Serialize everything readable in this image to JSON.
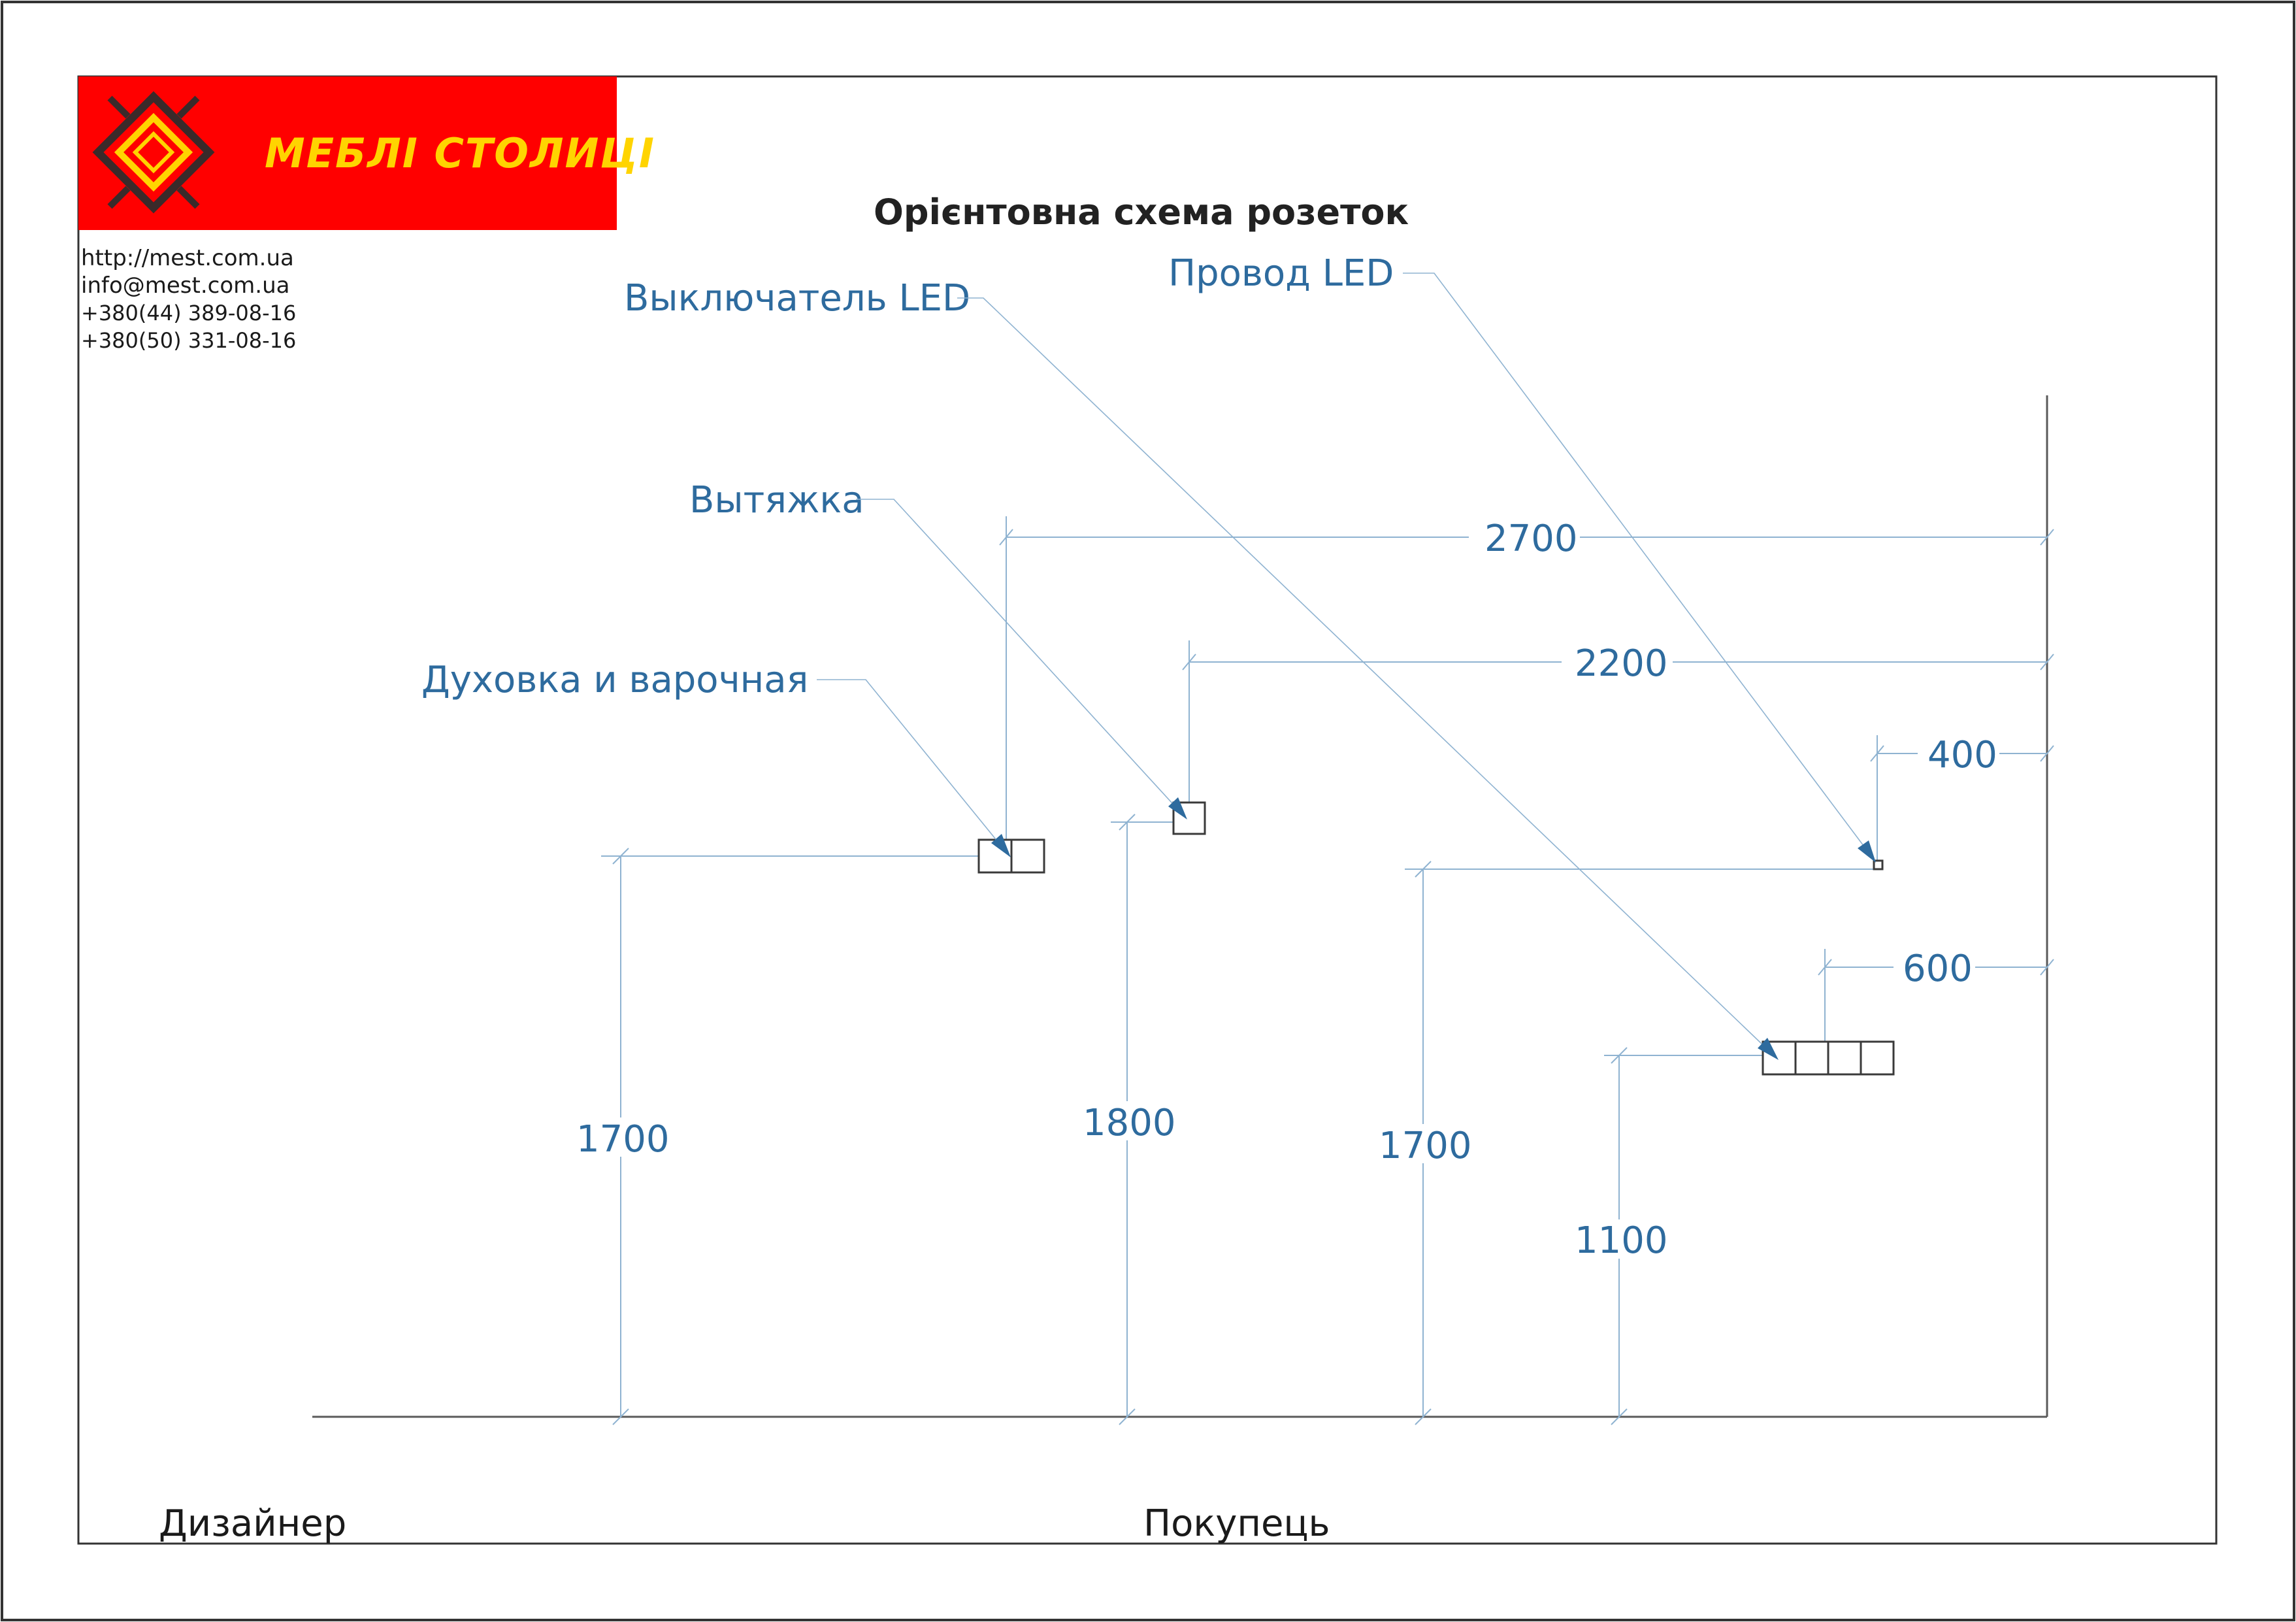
{
  "logo": {
    "brand": "МЕБЛІ СТОЛИЦІ",
    "background_color": "#ff0000",
    "text_color": "#ffd400"
  },
  "contacts": [
    "http://mest.com.ua",
    "info@mest.com.ua",
    "+380(44)   389-08-16",
    "+380(50)   331-08-16"
  ],
  "title": "Орієнтовна схема розеток",
  "callouts": {
    "switch_led": "Выключатель LED",
    "wire_led": "Провод LED",
    "hood": "Вытяжка",
    "oven_hob": "Духовка и варочная"
  },
  "dimensions": {
    "top_2700": "2700",
    "top_2200": "2200",
    "right_400": "400",
    "right_600": "600",
    "vert_1700_a": "1700",
    "vert_1800": "1800",
    "vert_1700_b": "1700",
    "vert_1100": "1100"
  },
  "footer": {
    "designer": "Дизайнер",
    "buyer": "Покупець"
  },
  "colors": {
    "annotation": "#2e6b9e",
    "dimension_line": "#8fb3d1",
    "outline": "#3a3a3a"
  }
}
